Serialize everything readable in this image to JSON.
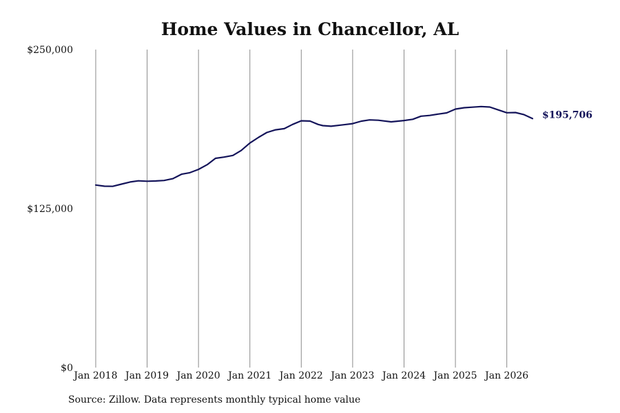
{
  "chart_data": {
    "type": "line",
    "title": "Home Values in Chancellor, AL",
    "xlabel": "",
    "ylabel": "",
    "ylim": [
      0,
      250000
    ],
    "y_ticks": [
      {
        "value": 0,
        "label": "$0"
      },
      {
        "value": 125000,
        "label": "$125,000"
      },
      {
        "value": 250000,
        "label": "$250,000"
      }
    ],
    "x_ticks": [
      {
        "value": 2018.0,
        "label": "Jan 2018"
      },
      {
        "value": 2019.0,
        "label": "Jan 2019"
      },
      {
        "value": 2020.0,
        "label": "Jan 2020"
      },
      {
        "value": 2021.0,
        "label": "Jan 2021"
      },
      {
        "value": 2022.0,
        "label": "Jan 2022"
      },
      {
        "value": 2023.0,
        "label": "Jan 2023"
      },
      {
        "value": 2024.0,
        "label": "Jan 2024"
      },
      {
        "value": 2025.0,
        "label": "Jan 2025"
      },
      {
        "value": 2026.0,
        "label": "Jan 2026"
      }
    ],
    "xlim": [
      2017.92,
      2027.6
    ],
    "grid": "vertical lines at x tick labels",
    "line_color": "#14145a",
    "series": [
      {
        "x": [
          2018.0,
          2018.17,
          2018.33,
          2018.5,
          2018.67,
          2018.83,
          2019.0,
          2019.17,
          2019.33,
          2019.5,
          2019.67,
          2019.83,
          2020.0,
          2020.17,
          2020.33,
          2020.5,
          2020.67,
          2020.83,
          2021.0,
          2021.17,
          2021.33,
          2021.5,
          2021.67,
          2021.83,
          2022.0,
          2022.17,
          2022.33,
          2022.42,
          2022.58,
          2022.83,
          2023.0,
          2023.17,
          2023.33,
          2023.5,
          2023.75,
          2024.0,
          2024.17,
          2024.33,
          2024.5,
          2024.67,
          2024.83,
          2025.0,
          2025.17,
          2025.33,
          2025.5,
          2025.67,
          2025.83,
          2026.0,
          2026.17,
          2026.33,
          2026.5
        ],
        "values": [
          143500,
          142600,
          142500,
          144200,
          145900,
          146800,
          146500,
          146700,
          147100,
          148500,
          152000,
          153200,
          155800,
          159500,
          164500,
          165500,
          166800,
          170600,
          176500,
          181000,
          184800,
          186900,
          187800,
          191100,
          194000,
          193800,
          191100,
          190200,
          189700,
          190900,
          191800,
          193700,
          194700,
          194400,
          193200,
          194200,
          195200,
          197600,
          198200,
          199300,
          200200,
          203200,
          204300,
          204700,
          205200,
          204800,
          202600,
          200300,
          200500,
          198900,
          195706
        ]
      }
    ],
    "end_label": "$195,706",
    "source": "Source: Zillow. Data represents monthly typical home value"
  }
}
